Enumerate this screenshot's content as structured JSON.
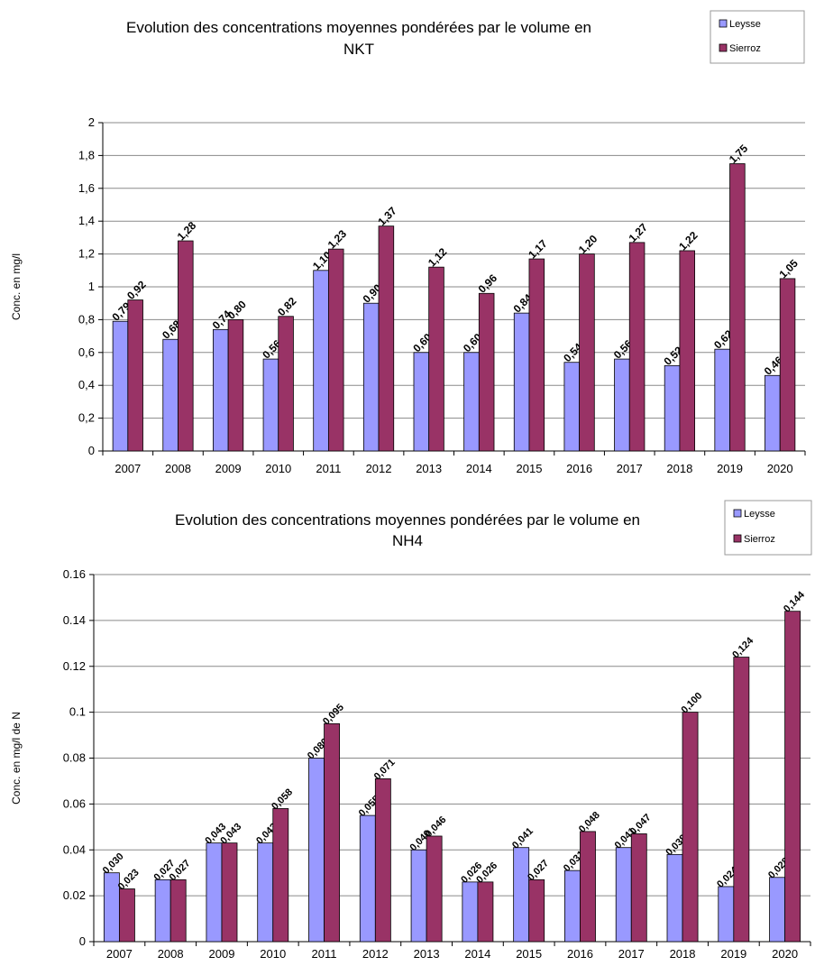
{
  "chart_data": [
    {
      "type": "bar",
      "title": "Evolution des concentrations moyennes pondérées par le volume en NKT",
      "title_lines": [
        "Evolution des concentrations moyennes pondérées par le volume en",
        "NKT"
      ],
      "xlabel": "",
      "ylabel": "Conc. en mg/l",
      "ylim": [
        0,
        2
      ],
      "yticks": [
        0,
        0.2,
        0.4,
        0.6,
        0.8,
        1,
        1.2,
        1.4,
        1.6,
        1.8,
        2
      ],
      "ytick_labels": [
        "0",
        "0,2",
        "0,4",
        "0,6",
        "0,8",
        "1",
        "1,2",
        "1,4",
        "1,6",
        "1,8",
        "2"
      ],
      "grid": true,
      "legend_position": "top-right",
      "categories": [
        "2007",
        "2008",
        "2009",
        "2010",
        "2011",
        "2012",
        "2013",
        "2014",
        "2015",
        "2016",
        "2017",
        "2018",
        "2019",
        "2020"
      ],
      "series": [
        {
          "name": "Leysse",
          "color": "#9999ff",
          "values": [
            0.79,
            0.68,
            0.74,
            0.56,
            1.1,
            0.9,
            0.6,
            0.6,
            0.84,
            0.54,
            0.56,
            0.52,
            0.62,
            0.46
          ],
          "data_labels": [
            "0,79",
            "0,68",
            "0,74",
            "0,56",
            "1,10",
            "0,90",
            "0,60",
            "0,60",
            "0,84",
            "0,54",
            "0,56",
            "0,52",
            "0,62",
            "0,46"
          ]
        },
        {
          "name": "Sierroz",
          "color": "#993366",
          "values": [
            0.92,
            1.28,
            0.8,
            0.82,
            1.23,
            1.37,
            1.12,
            0.96,
            1.17,
            1.2,
            1.27,
            1.22,
            1.75,
            1.05
          ],
          "data_labels": [
            "0,92",
            "1,28",
            "0,80",
            "0,82",
            "1,23",
            "1,37",
            "1,12",
            "0,96",
            "1,17",
            "1,20",
            "1,27",
            "1,22",
            "1,75",
            "1,05"
          ]
        }
      ]
    },
    {
      "type": "bar",
      "title": "Evolution des concentrations moyennes pondérées par le volume en NH4",
      "title_lines": [
        "Evolution des concentrations moyennes pondérées par le volume en",
        "NH4"
      ],
      "xlabel": "",
      "ylabel": "Conc. en mg/l de N",
      "ylim": [
        0,
        0.16
      ],
      "yticks": [
        0,
        0.02,
        0.04,
        0.06,
        0.08,
        0.1,
        0.12,
        0.14,
        0.16
      ],
      "ytick_labels": [
        "0",
        "0.02",
        "0.04",
        "0.06",
        "0.08",
        "0.1",
        "0.12",
        "0.14",
        "0.16"
      ],
      "grid": true,
      "legend_position": "top-right",
      "categories": [
        "2007",
        "2008",
        "2009",
        "2010",
        "2011",
        "2012",
        "2013",
        "2014",
        "2015",
        "2016",
        "2017",
        "2018",
        "2019",
        "2020"
      ],
      "series": [
        {
          "name": "Leysse",
          "color": "#9999ff",
          "values": [
            0.03,
            0.027,
            0.043,
            0.043,
            0.08,
            0.055,
            0.04,
            0.026,
            0.041,
            0.031,
            0.041,
            0.038,
            0.024,
            0.028
          ],
          "data_labels": [
            "0,030",
            "0,027",
            "0,043",
            "0,043",
            "0,080",
            "0,055",
            "0,040",
            "0,026",
            "0,041",
            "0,031",
            "0,041",
            "0,038",
            "0,024",
            "0,028"
          ]
        },
        {
          "name": "Sierroz",
          "color": "#993366",
          "values": [
            0.023,
            0.027,
            0.043,
            0.058,
            0.095,
            0.071,
            0.046,
            0.026,
            0.027,
            0.048,
            0.047,
            0.1,
            0.124,
            0.144
          ],
          "data_labels": [
            "0,023",
            "0,027",
            "0,043",
            "0,058",
            "0,095",
            "0,071",
            "0,046",
            "0,026",
            "0,027",
            "0,048",
            "0,047",
            "0,100",
            "0,124",
            "0,144"
          ]
        }
      ]
    }
  ]
}
